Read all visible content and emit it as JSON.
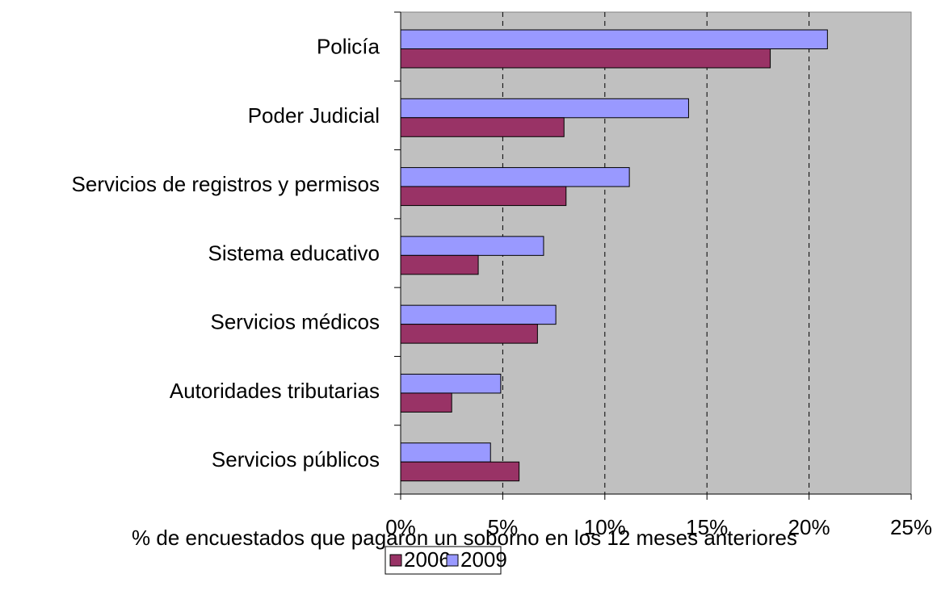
{
  "chart_data": {
    "type": "bar",
    "orientation": "horizontal",
    "categories": [
      "Policía",
      "Poder Judicial",
      "Servicios de registros y permisos",
      "Sistema educativo",
      "Servicios médicos",
      "Autoridades tributarias",
      "Servicios públicos"
    ],
    "series": [
      {
        "name": "2006",
        "color": "#993366",
        "values": [
          18.1,
          8.0,
          8.1,
          3.8,
          6.7,
          2.5,
          5.8
        ]
      },
      {
        "name": "2009",
        "color": "#9999ff",
        "values": [
          20.9,
          14.1,
          11.2,
          7.0,
          7.6,
          4.9,
          4.4
        ]
      }
    ],
    "xlabel": "% de encuestados que pagaron un soborno en los 12 meses anteriores",
    "xlim": [
      0,
      25
    ],
    "xticks": [
      {
        "value": 0,
        "label": "0%"
      },
      {
        "value": 5,
        "label": "5%"
      },
      {
        "value": 10,
        "label": "10%"
      },
      {
        "value": 15,
        "label": "15%"
      },
      {
        "value": 20,
        "label": "20%"
      },
      {
        "value": 25,
        "label": "25%"
      }
    ],
    "grid": true,
    "legend": "bottom"
  }
}
